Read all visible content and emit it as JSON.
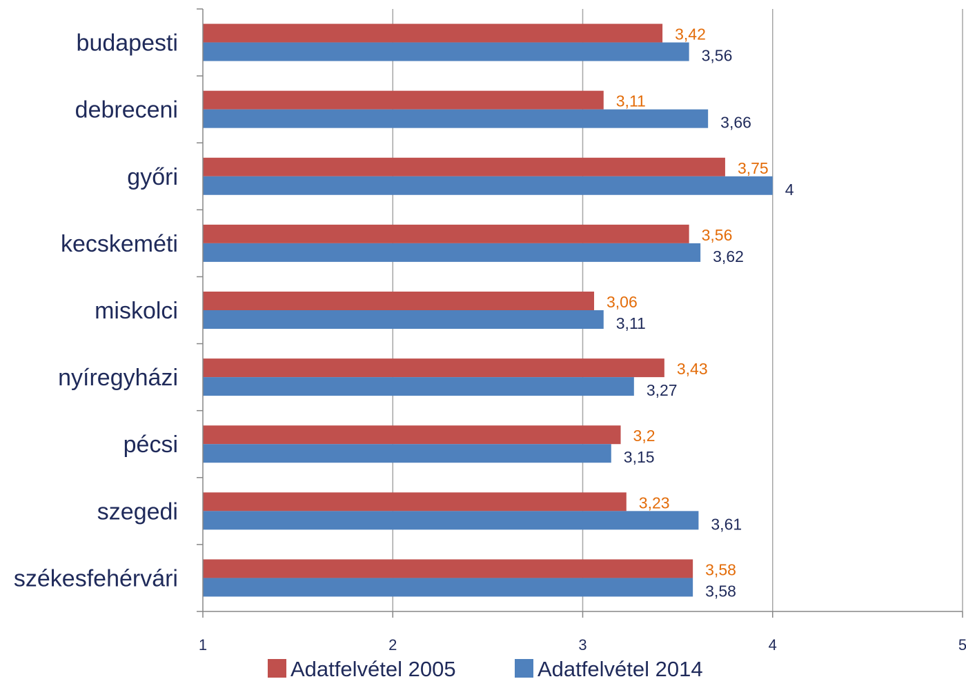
{
  "chart_data": {
    "type": "bar",
    "orientation": "horizontal",
    "title": "",
    "xlabel": "",
    "ylabel": "",
    "categories": [
      "budapesti",
      "debreceni",
      "győri",
      "kecskeméti",
      "miskolci",
      "nyíregyházi",
      "pécsi",
      "szegedi",
      "székesfehérvári"
    ],
    "series": [
      {
        "name": "Adatfelvétel 2005",
        "color": "#c0504d",
        "label_color": "#e36c09",
        "values": [
          3.42,
          3.11,
          3.75,
          3.56,
          3.06,
          3.43,
          3.2,
          3.23,
          3.58
        ],
        "labels": [
          "3,42",
          "3,11",
          "3,75",
          "3,56",
          "3,06",
          "3,43",
          "3,2",
          "3,23",
          "3,58"
        ]
      },
      {
        "name": "Adatfelvétel 2014",
        "color": "#4f81bd",
        "label_color": "#1f2a5a",
        "values": [
          3.56,
          3.66,
          4,
          3.62,
          3.11,
          3.27,
          3.15,
          3.61,
          3.58
        ],
        "labels": [
          "3,56",
          "3,66",
          "4",
          "3,62",
          "3,11",
          "3,27",
          "3,15",
          "3,61",
          "3,58"
        ]
      }
    ],
    "xlim": [
      1,
      5
    ],
    "xticks": [
      "1",
      "2",
      "3",
      "4",
      "5"
    ],
    "grid": "vertical",
    "legend_position": "bottom"
  }
}
